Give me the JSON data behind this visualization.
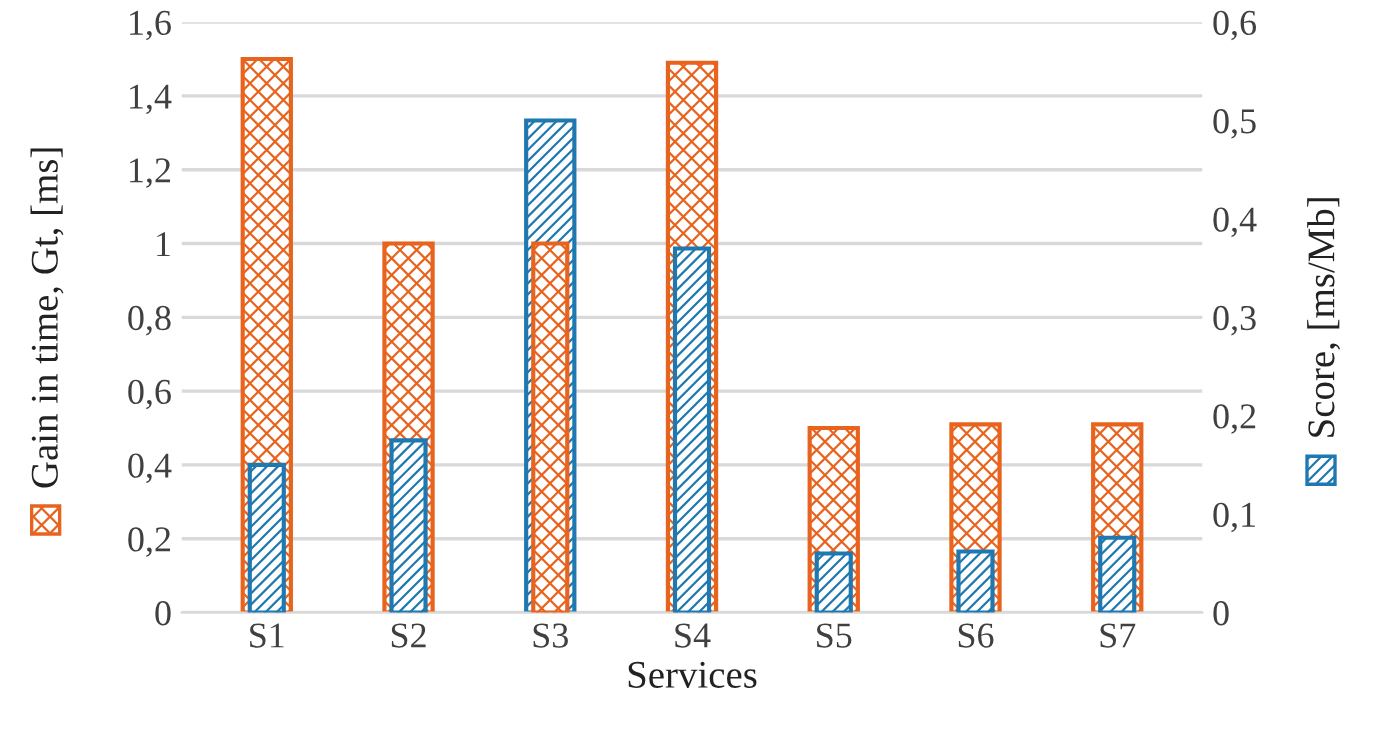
{
  "chart_data": {
    "type": "bar",
    "xlabel": "Services",
    "ylabel": "Gain in time, Gt, [ms]",
    "y2label": "Score, [ms/Mb]",
    "categories": [
      "S1",
      "S2",
      "S3",
      "S4",
      "S5",
      "S6",
      "S7"
    ],
    "series": [
      {
        "color": "#e8641e",
        "values": [
          1.5,
          1.0,
          1.0,
          1.49,
          0.5,
          0.51,
          0.51
        ]
      },
      {
        "color": "#1f78b0",
        "axis": "y2",
        "values": [
          0.15,
          0.175,
          0.5,
          0.37,
          0.06,
          0.062,
          0.076
        ]
      }
    ],
    "ylim": [
      0,
      1.6
    ],
    "yticks": [
      0,
      {
        "value": 0.2,
        "label": "0,2"
      },
      {
        "value": 0.4,
        "label": "0,4"
      },
      {
        "value": 0.6,
        "label": "0,6"
      },
      {
        "value": 0.8,
        "label": "0,8"
      },
      1,
      {
        "value": 1.2,
        "label": "1,2"
      },
      {
        "value": 1.4,
        "label": "1,4"
      },
      {
        "value": 1.6,
        "label": "1,6"
      }
    ],
    "y2lim": [
      0,
      0.6
    ],
    "y2ticks": [
      0,
      {
        "value": 0.1,
        "label": "0,1"
      },
      {
        "value": 0.2,
        "label": "0,2"
      },
      {
        "value": 0.3,
        "label": "0,3"
      },
      {
        "value": 0.4,
        "label": "0,4"
      },
      {
        "value": 0.5,
        "label": "0,5"
      },
      {
        "value": 0.6,
        "label": "0,6"
      }
    ],
    "grid": "y"
  }
}
